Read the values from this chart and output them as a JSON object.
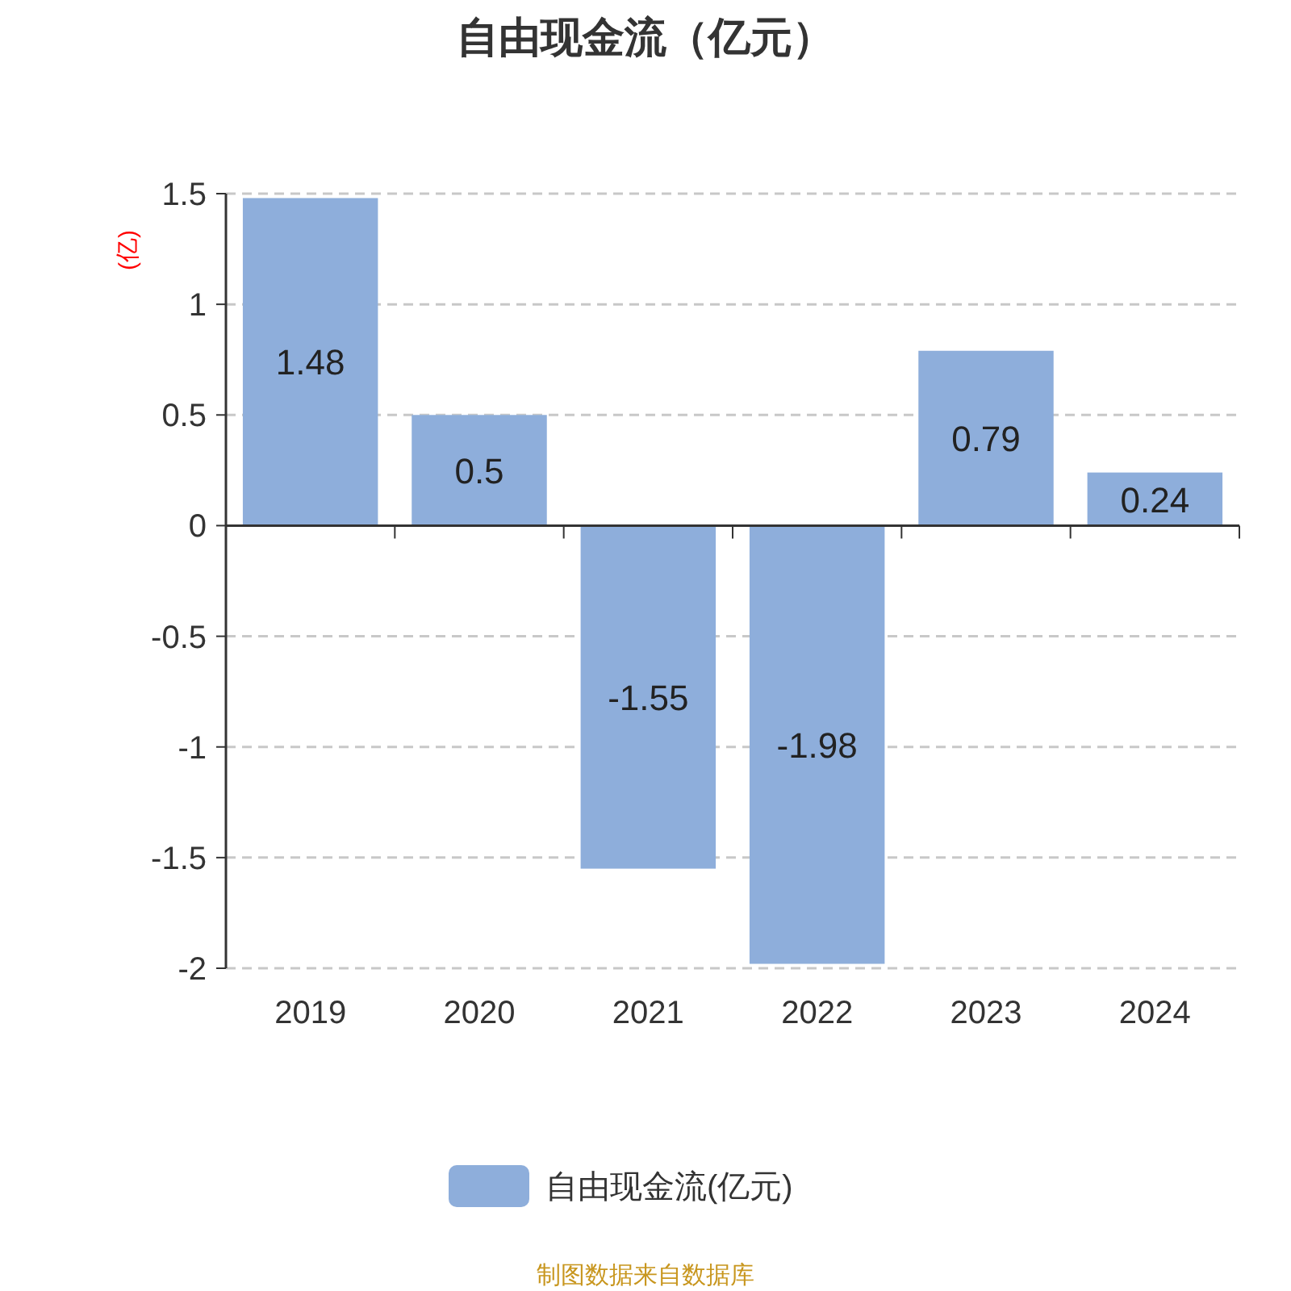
{
  "chart_data": {
    "type": "bar",
    "title": "自由现金流（亿元）",
    "ylabel": "(亿)",
    "categories": [
      "2019",
      "2020",
      "2021",
      "2022",
      "2023",
      "2024"
    ],
    "series": [
      {
        "name": "自由现金流(亿元)",
        "color": "#8eaedb",
        "values": [
          1.48,
          0.5,
          -1.55,
          -1.98,
          0.79,
          0.24
        ]
      }
    ],
    "ylim": [
      -2,
      1.5
    ],
    "yticks": [
      -2,
      -1.5,
      -1,
      -0.5,
      0,
      0.5,
      1,
      1.5
    ],
    "data_labels": true,
    "grid": "y",
    "legend": "bottom",
    "annotations": [
      "制图数据来自数据库"
    ]
  }
}
